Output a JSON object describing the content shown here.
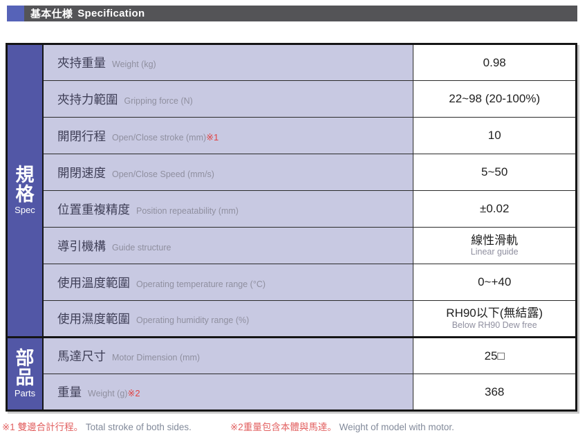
{
  "header": {
    "title_zh": "基本仕様",
    "title_en": "Specification"
  },
  "colors": {
    "accent_blue": "#5663b8",
    "header_bar": "#545457",
    "section_blue": "#5257a6",
    "label_bg": "#c8c9e2",
    "ref_red": "#e04343",
    "footnote_red": "#e26060",
    "footnote_gray": "#828a9a"
  },
  "sections": [
    {
      "title_zh": "規格",
      "title_en": "Spec",
      "rows": [
        {
          "label_zh": "夾持重量",
          "label_en": "Weight (kg)",
          "ref": "",
          "value": "0.98",
          "value_sub": ""
        },
        {
          "label_zh": "夾持力範圍",
          "label_en": "Gripping force (N)",
          "ref": "",
          "value": "22~98 (20-100%)",
          "value_sub": ""
        },
        {
          "label_zh": "開閉行程",
          "label_en": "Open/Close  stroke (mm)",
          "ref": "※1",
          "value": "10",
          "value_sub": ""
        },
        {
          "label_zh": "開閉速度",
          "label_en": "Open/Close Speed (mm/s)",
          "ref": "",
          "value": "5~50",
          "value_sub": ""
        },
        {
          "label_zh": "位置重複精度",
          "label_en": "Position repeatability (mm)",
          "ref": "",
          "value": "±0.02",
          "value_sub": ""
        },
        {
          "label_zh": "導引機構",
          "label_en": "Guide structure",
          "ref": "",
          "value": "線性滑軌",
          "value_sub": "Linear guide"
        },
        {
          "label_zh": "使用溫度範圍",
          "label_en": "Operating temperature range (°C)",
          "ref": "",
          "value": "0~+40",
          "value_sub": ""
        },
        {
          "label_zh": "使用濕度範圍",
          "label_en": "Operating humidity range (%)",
          "ref": "",
          "value": "RH90以下(無結露)",
          "value_sub": "Below RH90 Dew free"
        }
      ]
    },
    {
      "title_zh": "部品",
      "title_en": "Parts",
      "rows": [
        {
          "label_zh": "馬達尺寸",
          "label_en": "Motor Dimension (mm)",
          "ref": "",
          "value": "25□",
          "value_sub": ""
        },
        {
          "label_zh": "重量",
          "label_en": "Weight (g)",
          "ref": "※2",
          "value": "368",
          "value_sub": ""
        }
      ]
    }
  ],
  "footnotes": [
    {
      "red": "※1 雙邊合計行程。",
      "gray": "Total stroke of both sides."
    },
    {
      "red": "※2重量包含本體與馬達。",
      "gray": "Weight of model with motor."
    }
  ]
}
